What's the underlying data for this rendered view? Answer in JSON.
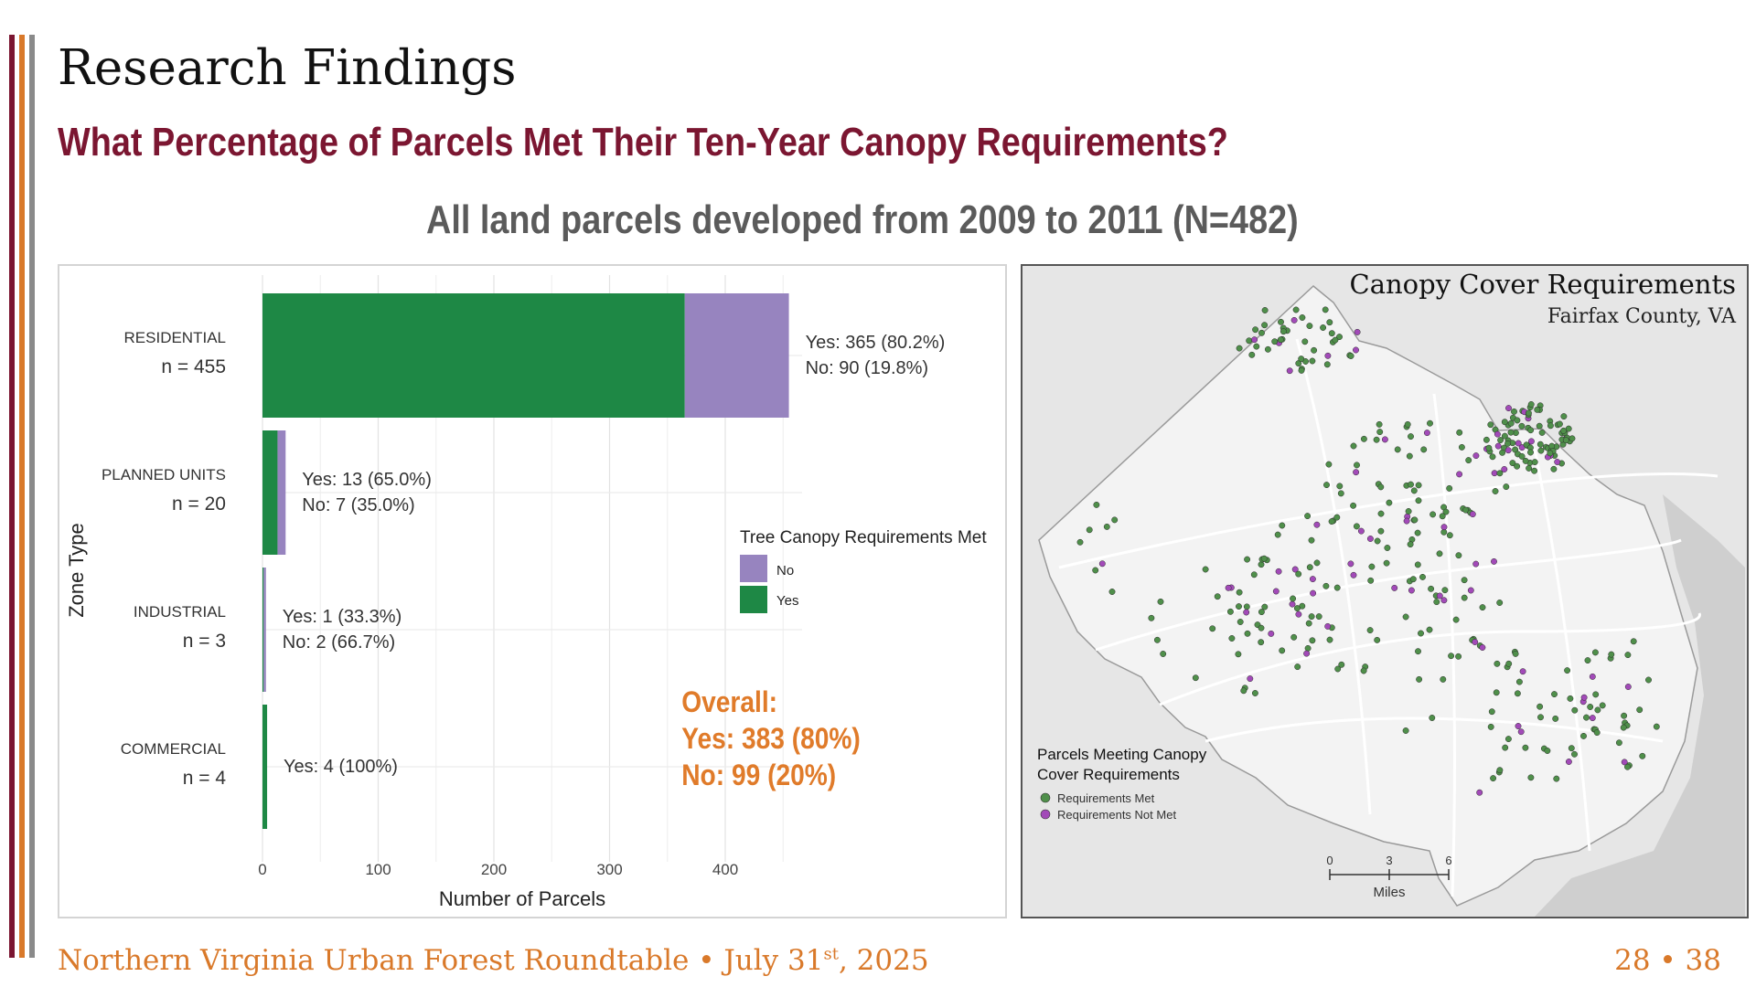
{
  "slide": {
    "title": "Research Findings",
    "subtitle": "What Percentage of Parcels Met Their Ten-Year Canopy Requirements?",
    "chart_heading": "All land parcels developed from 2009 to 2011 (N=482)",
    "footer": {
      "prefix": "Northern Virginia Urban Forest Roundtable • July 31",
      "superscript": "st",
      "suffix": ", 2025"
    },
    "page_number": "28 • 38",
    "accent_colors": {
      "maroon": "#7b1631",
      "orange": "#d9792a",
      "gray": "#8a8a8a"
    }
  },
  "chart_data": {
    "type": "bar",
    "orientation": "horizontal",
    "stacked": true,
    "xlabel": "Number of Parcels",
    "ylabel": "Zone Type",
    "xlim": [
      0,
      470
    ],
    "xticks": [
      0,
      100,
      200,
      300,
      400
    ],
    "categories": [
      "RESIDENTIAL",
      "PLANNED UNITS",
      "INDUSTRIAL",
      "COMMERCIAL"
    ],
    "category_counts": [
      "n = 455",
      "n = 20",
      "n = 3",
      "n = 4"
    ],
    "series": [
      {
        "name": "Yes",
        "color": "#1e8845",
        "values": [
          365,
          13,
          1,
          4
        ]
      },
      {
        "name": "No",
        "color": "#9784bf",
        "values": [
          90,
          7,
          2,
          0
        ]
      }
    ],
    "bar_labels": [
      [
        "Yes: 365 (80.2%)",
        "No: 90 (19.8%)"
      ],
      [
        "Yes: 13 (65.0%)",
        "No: 7 (35.0%)"
      ],
      [
        "Yes: 1 (33.3%)",
        "No: 2 (66.7%)"
      ],
      [
        "Yes: 4 (100%)"
      ]
    ],
    "legend": {
      "title": "Tree Canopy Requirements Met",
      "position": "right",
      "items": [
        {
          "label": "No",
          "color": "#9784bf"
        },
        {
          "label": "Yes",
          "color": "#1e8845"
        }
      ]
    },
    "annotation": [
      "Overall:",
      "Yes: 383 (80%)",
      "No: 99 (20%)"
    ],
    "annotation_color": "#e07b2a",
    "grid": true
  },
  "map": {
    "title": "Canopy Cover Requirements",
    "subtitle": "Fairfax County, VA",
    "legend_title": [
      "Parcels Meeting Canopy",
      "Cover Requirements"
    ],
    "legend_items": [
      {
        "label": "Requirements Met",
        "color": "#4f8f4a"
      },
      {
        "label": "Requirements Not Met",
        "color": "#a24ab8"
      }
    ],
    "scale_labels": [
      "0",
      "3",
      "6"
    ],
    "scale_unit": "Miles"
  }
}
